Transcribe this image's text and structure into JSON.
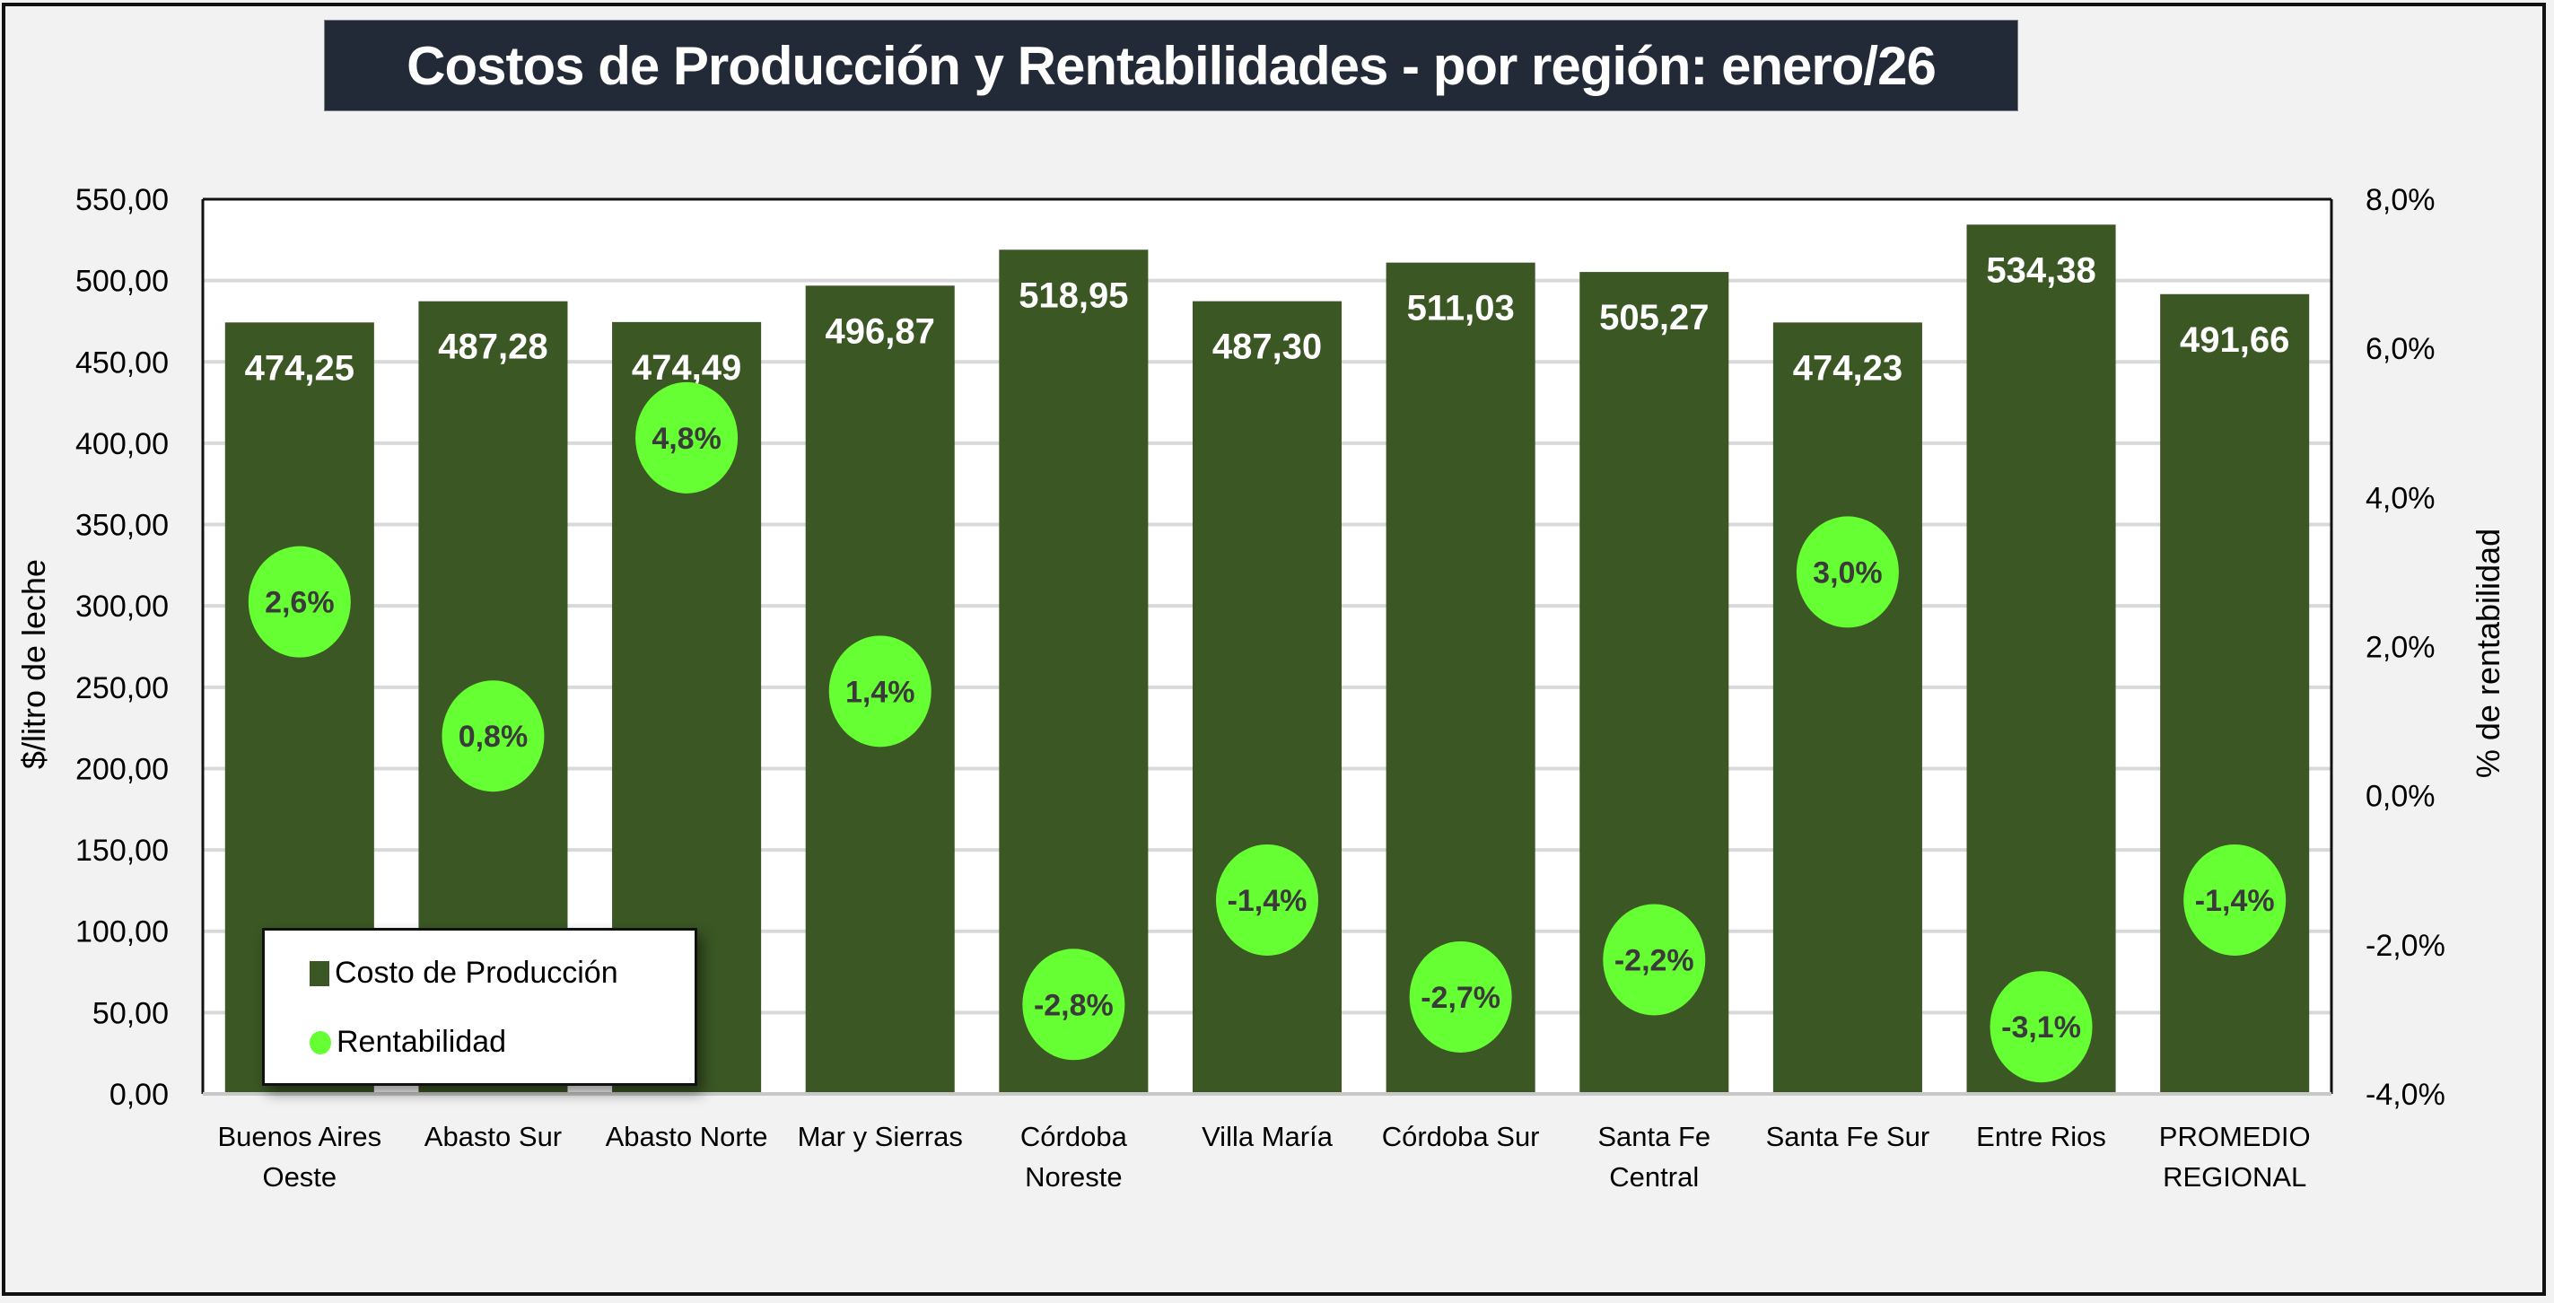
{
  "title": "Costos de Producción y Rentabilidades - por región: enero/26",
  "colors": {
    "bar": "#3b5724",
    "marker": "#66ff33",
    "marker_text": "#3a3a3a",
    "bar_label": "#ffffff",
    "title_bg": "#232a37",
    "gridline": "#d9d9d9",
    "background": "#f2f2f2",
    "plot_bg": "#ffffff"
  },
  "legend": {
    "items": [
      {
        "label": "Costo de Producción",
        "icon": "square-icon"
      },
      {
        "label": "Rentabilidad",
        "icon": "circle-icon"
      }
    ]
  },
  "chart_data": {
    "type": "bar",
    "title": "Costos de Producción y Rentabilidades - por región: enero/26",
    "categories": [
      [
        "Buenos Aires",
        "Oeste"
      ],
      [
        "Abasto Sur"
      ],
      [
        "Abasto Norte"
      ],
      [
        "Mar y Sierras"
      ],
      [
        "Córdoba",
        "Noreste"
      ],
      [
        "Villa María"
      ],
      [
        "Córdoba Sur"
      ],
      [
        "Santa Fe",
        "Central"
      ],
      [
        "Santa Fe Sur"
      ],
      [
        "Entre Rios"
      ],
      [
        "PROMEDIO",
        "REGIONAL"
      ]
    ],
    "series": [
      {
        "name": "Costo de Producción",
        "type": "bar",
        "axis": "left",
        "values": [
          474.25,
          487.28,
          474.49,
          496.87,
          518.95,
          487.3,
          511.03,
          505.27,
          474.23,
          534.38,
          491.66
        ],
        "labels": [
          "474,25",
          "487,28",
          "474,49",
          "496,87",
          "518,95",
          "487,30",
          "511,03",
          "505,27",
          "474,23",
          "534,38",
          "491,66"
        ]
      },
      {
        "name": "Rentabilidad",
        "type": "scatter",
        "axis": "right",
        "values": [
          2.6,
          0.8,
          4.8,
          1.4,
          -2.8,
          -1.4,
          -2.7,
          -2.2,
          3.0,
          -3.1,
          -1.4
        ],
        "labels": [
          "2,6%",
          "0,8%",
          "4,8%",
          "1,4%",
          "-2,8%",
          "-1,4%",
          "-2,7%",
          "-2,2%",
          "3,0%",
          "-3,1%",
          "-1,4%"
        ]
      }
    ],
    "ylabel": "$/litro de leche",
    "ylim": [
      0,
      550
    ],
    "yticks": [
      "0,00",
      "50,00",
      "100,00",
      "150,00",
      "200,00",
      "250,00",
      "300,00",
      "350,00",
      "400,00",
      "450,00",
      "500,00",
      "550,00"
    ],
    "y2label": "% de rentabilidad",
    "y2lim": [
      -4,
      8
    ],
    "y2ticks": [
      "-4,0%",
      "-2,0%",
      "0,0%",
      "2,0%",
      "4,0%",
      "6,0%",
      "8,0%"
    ],
    "grid": true,
    "legend_position": "bottom-left"
  }
}
